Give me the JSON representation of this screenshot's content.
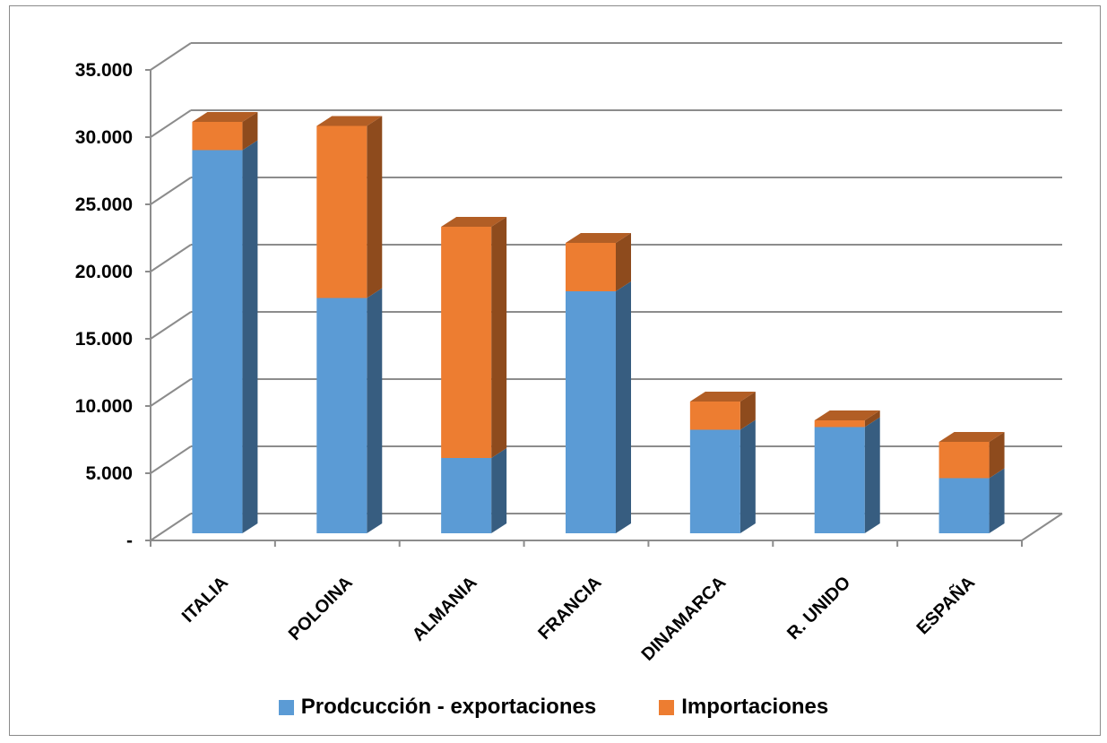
{
  "chart_data": {
    "type": "bar",
    "stacked": true,
    "three_d": true,
    "categories": [
      "ITALIA",
      "POLOINA",
      "ALMANIA",
      "FRANCIA",
      "DINAMARCA",
      "R. UNIDO",
      "ESPAÑA"
    ],
    "series": [
      {
        "name": "Prodcucción - exportaciones",
        "color": "#5b9bd5",
        "values": [
          28500,
          17500,
          5600,
          18000,
          7700,
          7900,
          4100
        ]
      },
      {
        "name": "Importaciones",
        "color": "#ed7d31",
        "values": [
          2100,
          12800,
          17200,
          3600,
          2100,
          500,
          2700
        ]
      }
    ],
    "ylim": [
      0,
      35000
    ],
    "y_ticks": [
      0,
      5000,
      10000,
      15000,
      20000,
      25000,
      30000,
      35000
    ],
    "y_tick_labels": [
      "-",
      "5.000",
      "10.000",
      "15.000",
      "20.000",
      "25.000",
      "30.000",
      "35.000"
    ],
    "grid": true,
    "legend_position": "bottom",
    "title": "",
    "xlabel": "",
    "ylabel": ""
  }
}
